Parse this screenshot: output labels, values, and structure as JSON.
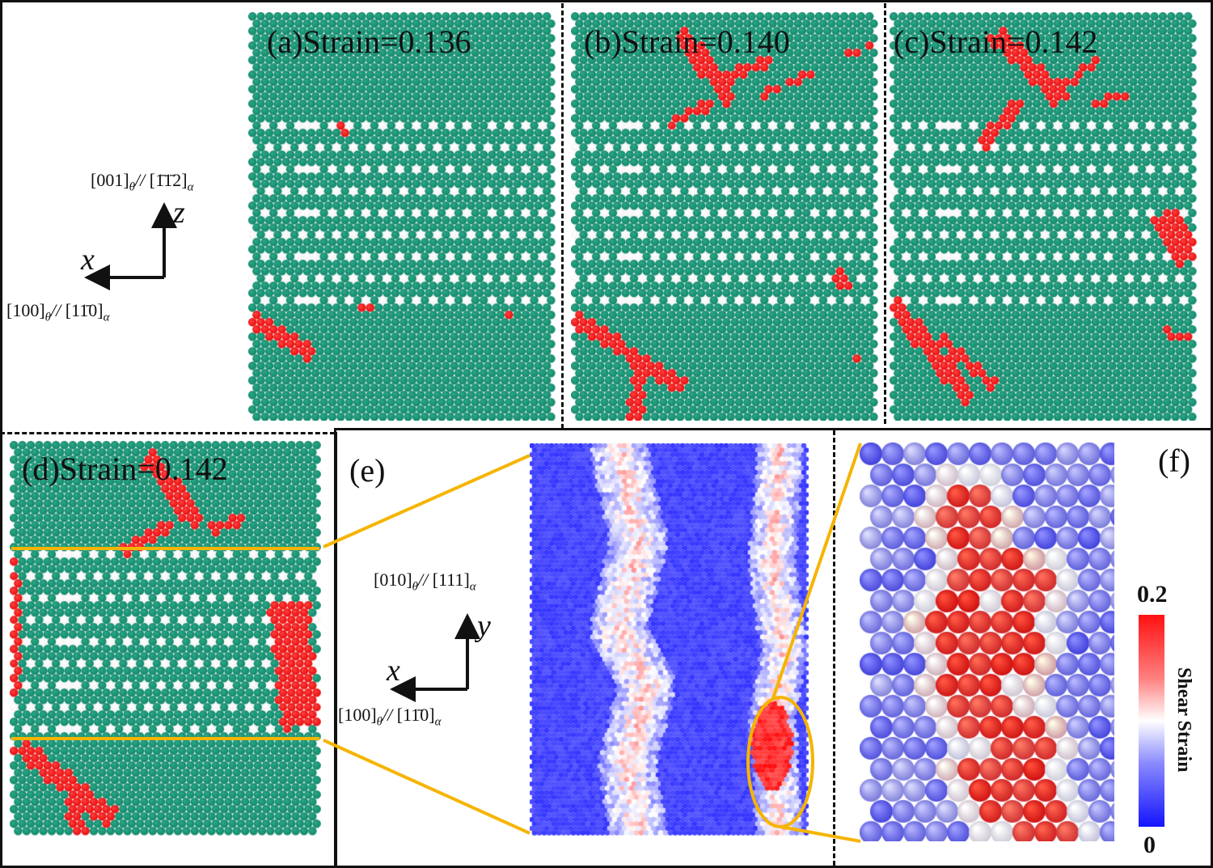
{
  "figure": {
    "top_row": {
      "panels": [
        {
          "id": "a",
          "label": "(a)Strain=0.136",
          "strain": 0.136
        },
        {
          "id": "b",
          "label": "(b)Strain=0.140",
          "strain": 0.14
        },
        {
          "id": "c",
          "label": "(c)Strain=0.142",
          "strain": 0.142
        }
      ],
      "axes": {
        "vertical_letter": "z",
        "horizontal_letter": "x",
        "vertical_dir_label": "[001]θ // [1̄1̄2]α",
        "vertical_parts": {
          "theta": "[001]",
          "theta_sub": "θ",
          "sep": "//",
          "alpha": "[1̄1̄2]",
          "alpha_sub": "α"
        },
        "horizontal_dir_label": "[100]θ // [11̄0]α",
        "horizontal_parts": {
          "theta": "[100]",
          "theta_sub": "θ",
          "sep": "//",
          "alpha": "[11̄0]",
          "alpha_sub": "α"
        }
      }
    },
    "bottom_row": {
      "panel_d": {
        "id": "d",
        "label": "(d)Strain=0.142",
        "strain": 0.142
      },
      "panel_e": {
        "id": "e",
        "label": "(e)"
      },
      "panel_f": {
        "id": "f",
        "label": "(f)"
      },
      "axes": {
        "vertical_letter": "y",
        "horizontal_letter": "x",
        "vertical_dir_label": "[010]θ // [111]α",
        "vertical_parts": {
          "theta": "[010]",
          "theta_sub": "θ",
          "sep": "//",
          "alpha": "[111]",
          "alpha_sub": "α"
        },
        "horizontal_dir_label": "[100]θ // [11̄0]α",
        "horizontal_parts": {
          "theta": "[100]",
          "theta_sub": "θ",
          "sep": "//",
          "alpha": "[11̄0]",
          "alpha_sub": "α"
        }
      },
      "colorbar": {
        "title": "Shear Strain",
        "max_label": "0.2",
        "min_label": "0",
        "colors": {
          "high": "#ff1010",
          "mid": "#ffffff",
          "low": "#1414ff"
        }
      }
    },
    "colors": {
      "alpha_phase_atom": "#13876b",
      "theta_interstitial_atom": "#f4f4f4",
      "defect_atom": "#e80c0c",
      "zoom_guide": "#f5b400",
      "frame": "#111111"
    },
    "legend_semantics": {
      "green": "ferrite (α) atoms",
      "white": "cementite (θ) carbon sites",
      "red": "non-BCC / defect atoms"
    }
  }
}
